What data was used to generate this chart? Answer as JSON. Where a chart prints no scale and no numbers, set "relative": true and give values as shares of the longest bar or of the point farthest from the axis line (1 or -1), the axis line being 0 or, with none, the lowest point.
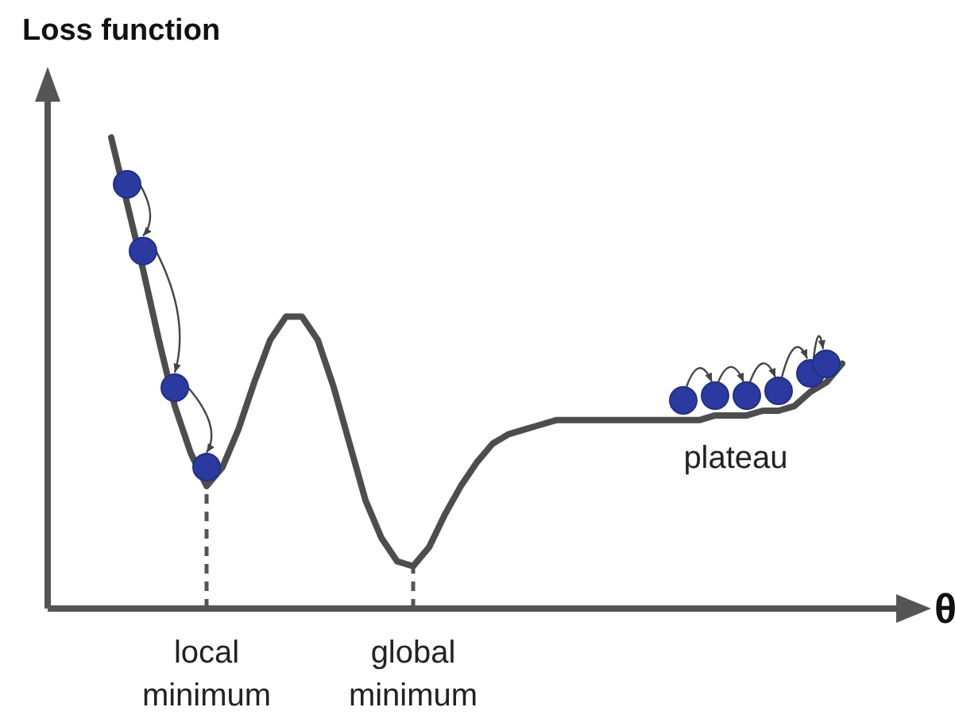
{
  "chart_data": {
    "type": "line",
    "relative": true,
    "ylabel": "Loss function",
    "xlabel": "θ",
    "categories": [
      null,
      null,
      null,
      null,
      null,
      null,
      null,
      null,
      null,
      null,
      null,
      null,
      null,
      null,
      null,
      null,
      null,
      null,
      null,
      null,
      null,
      null,
      null,
      null,
      null,
      null,
      null,
      null,
      null,
      null,
      null,
      null,
      null,
      null,
      null,
      null,
      null,
      null,
      null,
      null,
      null,
      null,
      null,
      null,
      null,
      null,
      null
    ],
    "series": [
      {
        "color": "#4d4d4d",
        "marker": "none",
        "line_style": "solid",
        "values": [
          1.0,
          0.86,
          0.72,
          0.57,
          0.43,
          0.33,
          0.26,
          0.3,
          0.38,
          0.48,
          0.57,
          0.62,
          0.62,
          0.57,
          0.47,
          0.35,
          0.23,
          0.15,
          0.1,
          0.09,
          0.13,
          0.2,
          0.26,
          0.31,
          0.35,
          0.37,
          0.38,
          0.39,
          0.4,
          0.4,
          0.4,
          0.4,
          0.4,
          0.4,
          0.4,
          0.4,
          0.4,
          0.4,
          0.41,
          0.41,
          0.41,
          0.42,
          0.42,
          0.43,
          0.46,
          0.48,
          0.52
        ]
      }
    ],
    "annotations": [
      {
        "text": "local minimum",
        "y": 0.26
      },
      {
        "text": "global minimum",
        "y": 0.09
      },
      "plateau"
    ]
  }
}
